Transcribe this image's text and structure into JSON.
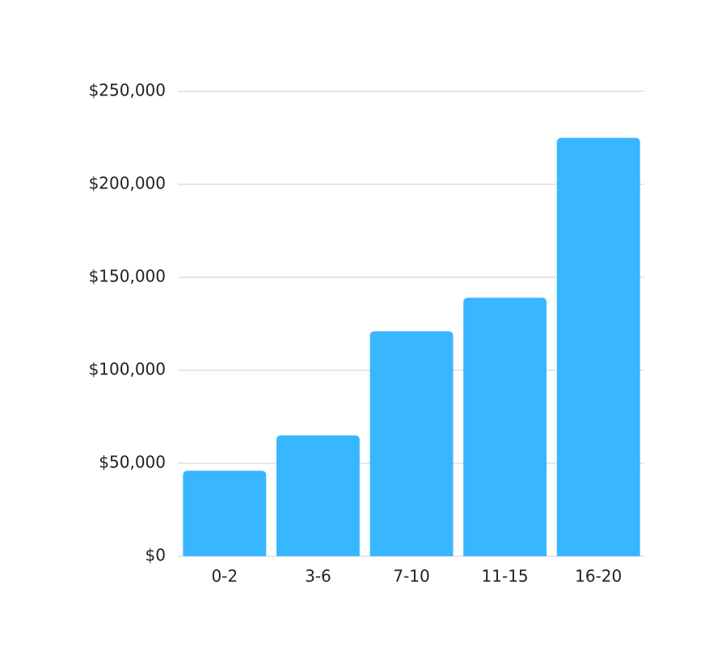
{
  "chart_data": {
    "type": "bar",
    "categories": [
      "0-2",
      "3-6",
      "7-10",
      "11-15",
      "16-20"
    ],
    "values": [
      46000,
      65000,
      121000,
      139000,
      225000
    ],
    "color": "#38b6ff",
    "ylim": [
      0,
      250000
    ],
    "yticks": [
      {
        "value": 0,
        "label": "$0"
      },
      {
        "value": 50000,
        "label": "$50,000"
      },
      {
        "value": 100000,
        "label": "$100,000"
      },
      {
        "value": 150000,
        "label": "$150,000"
      },
      {
        "value": 200000,
        "label": "$200,000"
      },
      {
        "value": 250000,
        "label": "$250,000"
      }
    ],
    "grid": true
  }
}
